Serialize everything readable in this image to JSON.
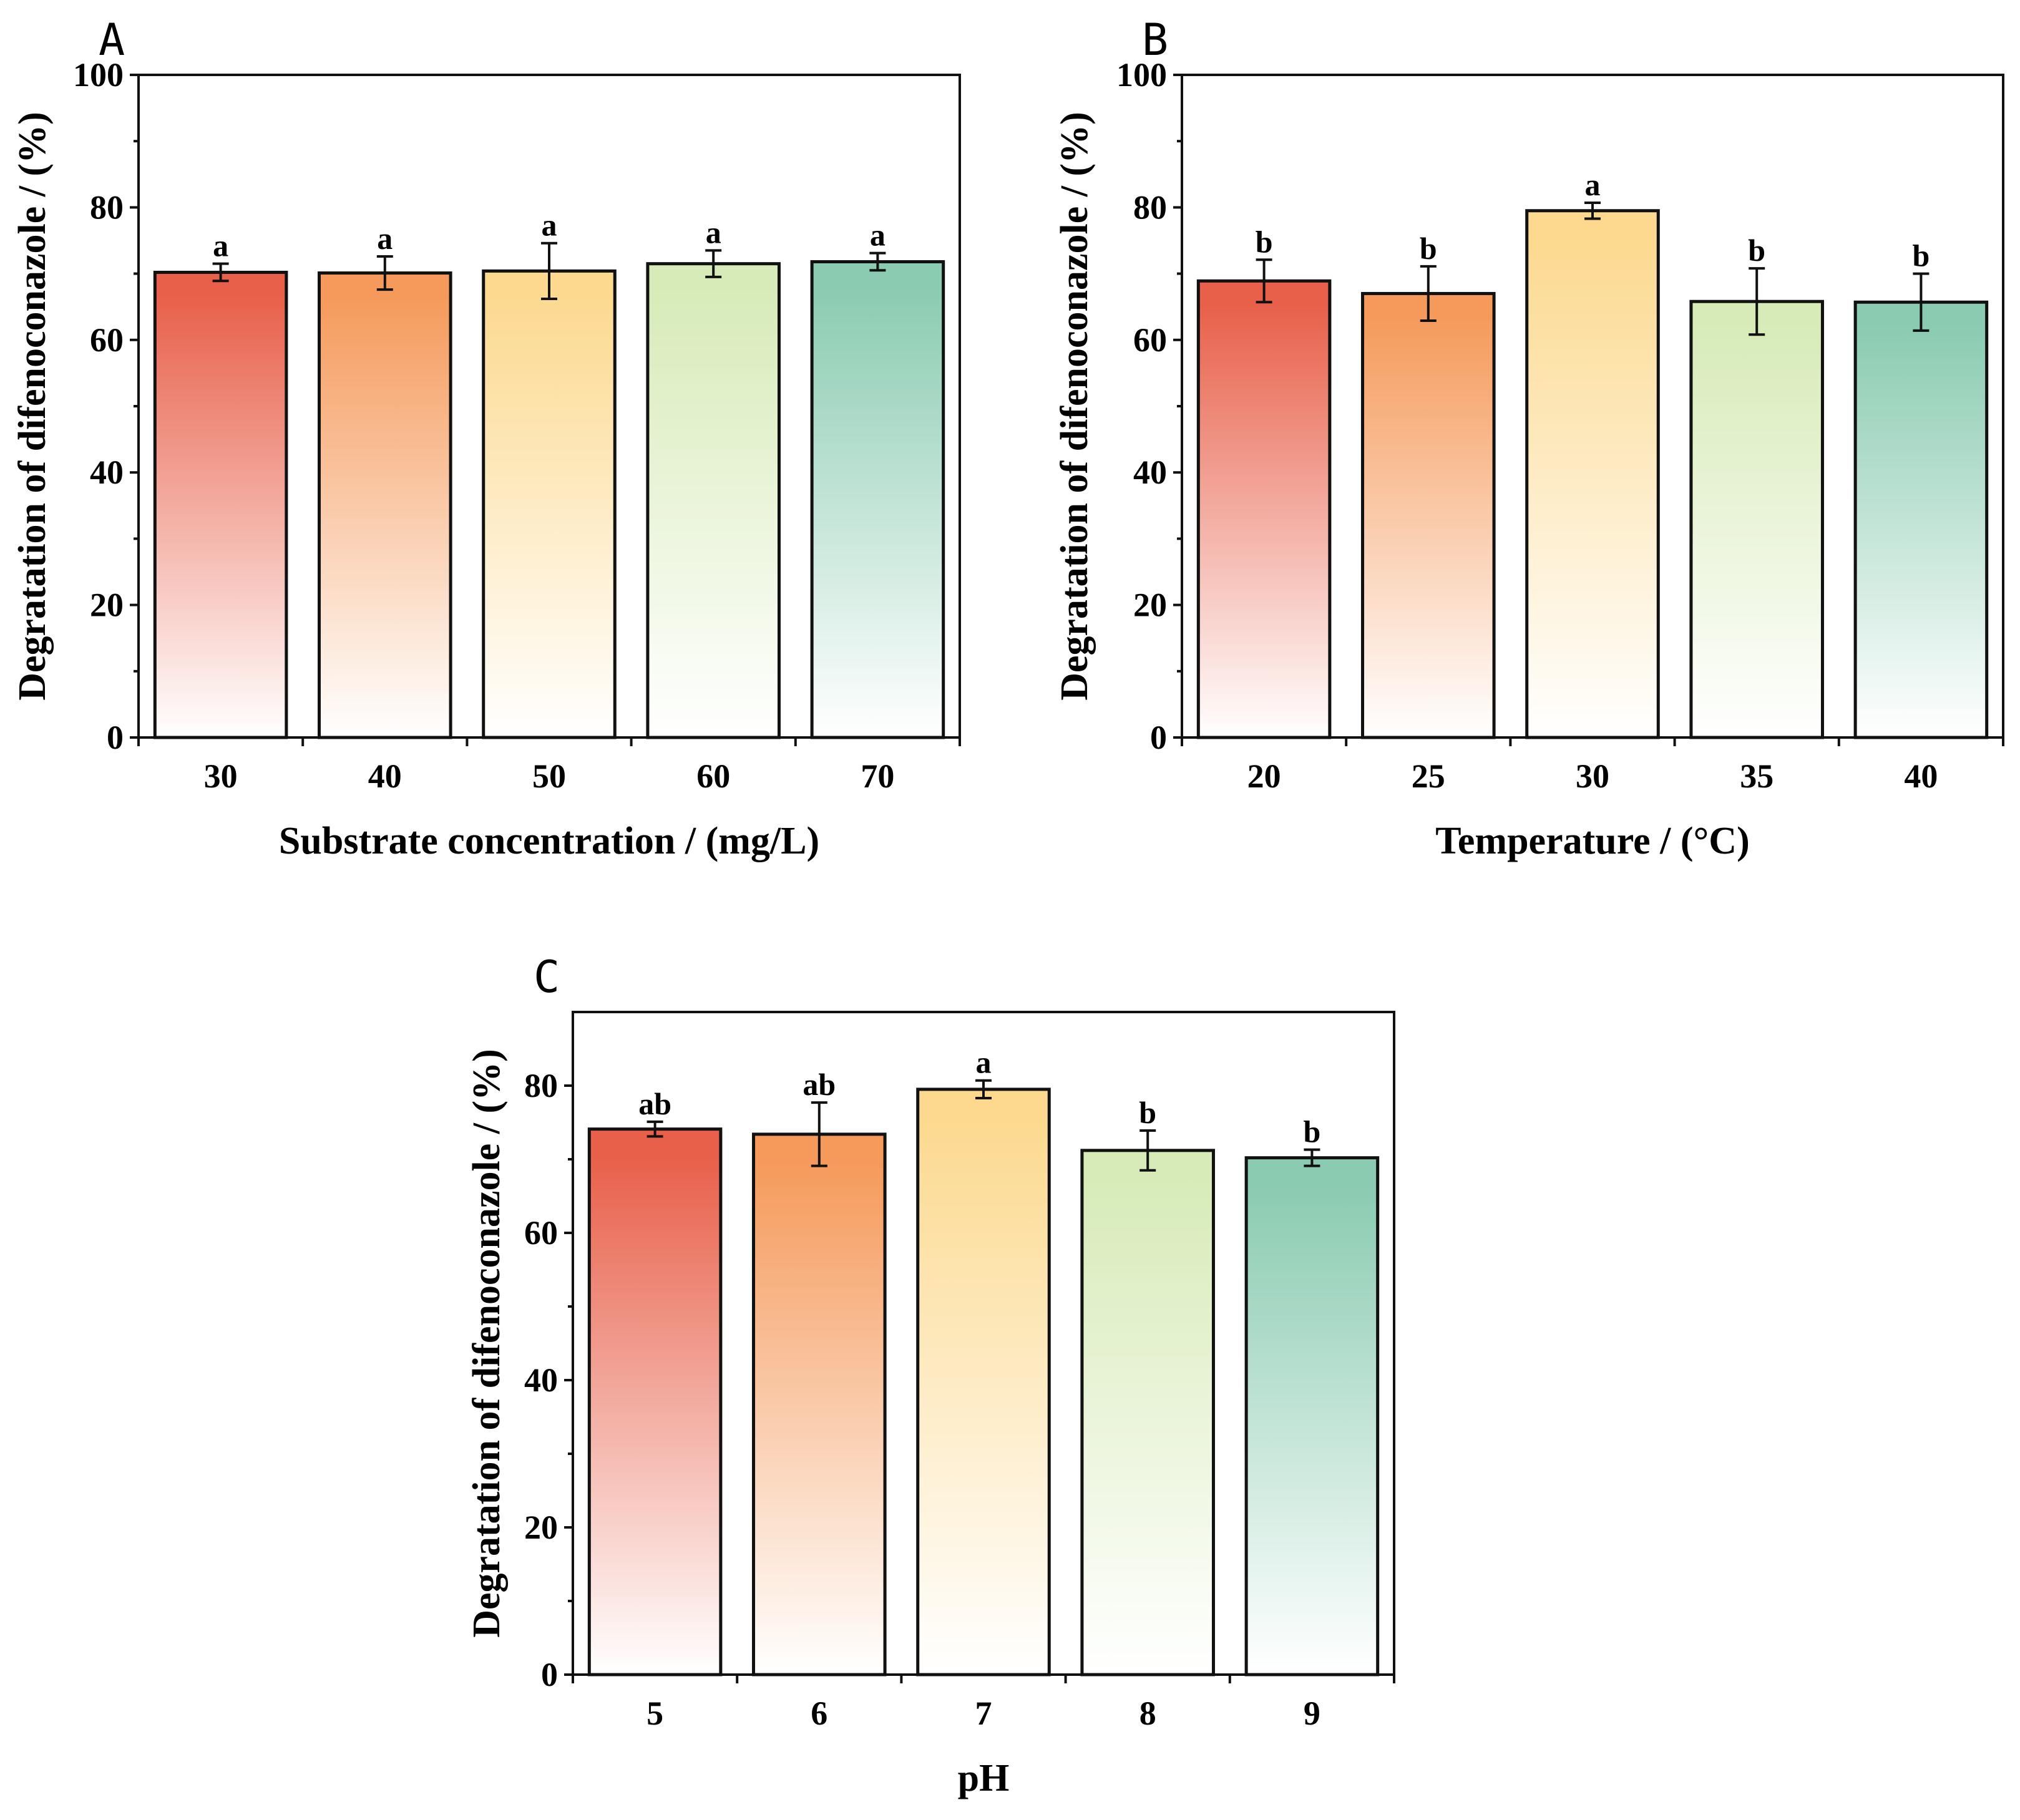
{
  "figure": {
    "bar_colors": [
      "#e8604a",
      "#f59a5b",
      "#fcd98f",
      "#d7ebb8",
      "#8acbb1"
    ]
  },
  "chart_data": [
    {
      "panel": "A",
      "type": "bar",
      "categories": [
        "30",
        "40",
        "50",
        "60",
        "70"
      ],
      "values": [
        70.2,
        70.1,
        70.4,
        71.5,
        71.8
      ],
      "errors": [
        1.3,
        2.5,
        4.2,
        2.0,
        1.3
      ],
      "annotations": [
        "a",
        "a",
        "a",
        "a",
        "a"
      ],
      "xlabel": "Substrate concentration / (mg/L)",
      "ylabel": "Degratation of difenoconazole / (%)",
      "ylim": [
        0,
        100
      ],
      "yticks": [
        0,
        20,
        40,
        60,
        80,
        100
      ]
    },
    {
      "panel": "B",
      "type": "bar",
      "categories": [
        "20",
        "25",
        "30",
        "35",
        "40"
      ],
      "values": [
        68.9,
        67.0,
        79.5,
        65.8,
        65.7
      ],
      "errors": [
        3.2,
        4.1,
        1.2,
        5.0,
        4.3
      ],
      "annotations": [
        "b",
        "b",
        "a",
        "b",
        "b"
      ],
      "xlabel": "Temperature / (°C)",
      "ylabel": "Degratation of difenoconazole / (%)",
      "ylim": [
        0,
        100
      ],
      "yticks": [
        0,
        20,
        40,
        60,
        80,
        100
      ]
    },
    {
      "panel": "C",
      "type": "bar",
      "categories": [
        "5",
        "6",
        "7",
        "8",
        "9"
      ],
      "values": [
        74.1,
        73.4,
        79.5,
        71.2,
        70.2
      ],
      "errors": [
        1.0,
        4.3,
        1.2,
        2.7,
        1.1
      ],
      "annotations": [
        "ab",
        "ab",
        "a",
        "b",
        "b"
      ],
      "xlabel": "pH",
      "ylabel": "Degratation of difenoconazole / (%)",
      "ylim": [
        0,
        90
      ],
      "yticks": [
        0,
        20,
        40,
        60,
        80
      ]
    }
  ]
}
